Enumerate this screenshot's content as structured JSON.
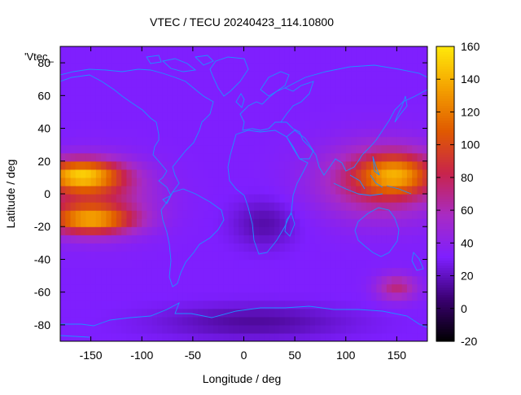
{
  "plot": {
    "title": "VTEC / TECU 20240423_114.10800",
    "xlabel": "Longitude / deg",
    "ylabel": "Latitude / deg",
    "key_label": "'Vtec_"
  },
  "chart_data": {
    "type": "heatmap",
    "title": "VTEC / TECU 20240423_114.10800",
    "xlabel": "Longitude / deg",
    "ylabel": "Latitude / deg",
    "xlim": [
      -180,
      180
    ],
    "ylim": [
      -90,
      90
    ],
    "x_ticks": [
      -150,
      -100,
      -50,
      0,
      50,
      100,
      150
    ],
    "y_ticks": [
      -80,
      -60,
      -40,
      -20,
      0,
      20,
      40,
      60,
      80
    ],
    "colorbar": {
      "range": [
        -20,
        160
      ],
      "ticks": [
        -20,
        0,
        20,
        40,
        60,
        80,
        100,
        120,
        140,
        160
      ],
      "palette": [
        "#000000",
        "#3a0070",
        "#7e1fff",
        "#a82bc4",
        "#c8244b",
        "#e05a00",
        "#f4a000",
        "#ffe80a"
      ]
    },
    "background_level": 32,
    "features": [
      {
        "name": "equatorial-anomaly-pacific-north",
        "lon": -160,
        "lat": 12,
        "rlon": 40,
        "rlat": 9,
        "value": 122
      },
      {
        "name": "equatorial-anomaly-pacific-south",
        "lon": -150,
        "lat": -16,
        "rlon": 42,
        "rlat": 8,
        "value": 108
      },
      {
        "name": "pacific-band",
        "lon": -150,
        "lat": -2,
        "rlon": 55,
        "rlat": 20,
        "value": 82
      },
      {
        "name": "asia-pacific-band",
        "lon": 135,
        "lat": 8,
        "rlon": 60,
        "rlat": 22,
        "value": 82
      },
      {
        "name": "west-pacific-crest",
        "lon": 150,
        "lat": 12,
        "rlon": 35,
        "rlat": 12,
        "value": 95
      },
      {
        "name": "southern-ocean-patch",
        "lon": 150,
        "lat": -57,
        "rlon": 20,
        "rlat": 8,
        "value": 72
      },
      {
        "name": "south-atlantic-low",
        "lon": 20,
        "lat": -18,
        "rlon": 30,
        "rlat": 14,
        "value": 16
      },
      {
        "name": "antarctic-low",
        "lon": 10,
        "lat": -78,
        "rlon": 90,
        "rlat": 10,
        "value": 14
      }
    ]
  },
  "overlay": {
    "coastline_color": "#1e90ff",
    "content": "world-coastlines"
  }
}
